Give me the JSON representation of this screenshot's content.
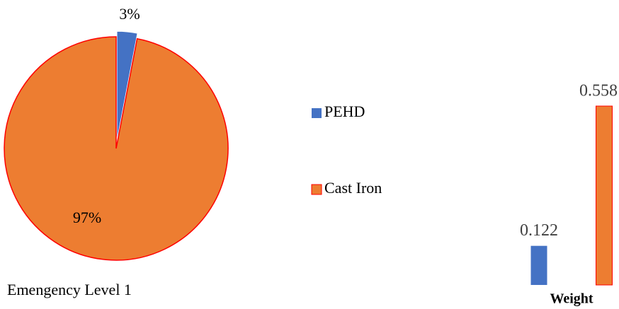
{
  "chart_data": [
    {
      "type": "pie",
      "title": "Emengency Level 1",
      "labels": [
        "PEHD",
        "Cast Iron"
      ],
      "values": [
        3,
        97
      ],
      "value_labels": [
        "3%",
        "97%"
      ],
      "colors": [
        "#4472c4",
        "#ed7d31"
      ],
      "explode": [
        true,
        false
      ],
      "legend": "right"
    },
    {
      "type": "bar",
      "categories": [
        "Weight"
      ],
      "series": [
        {
          "color": "#4472c4",
          "values": [
            0.122
          ]
        },
        {
          "color": "#ed7d31",
          "values": [
            0.558
          ]
        }
      ]
    }
  ]
}
